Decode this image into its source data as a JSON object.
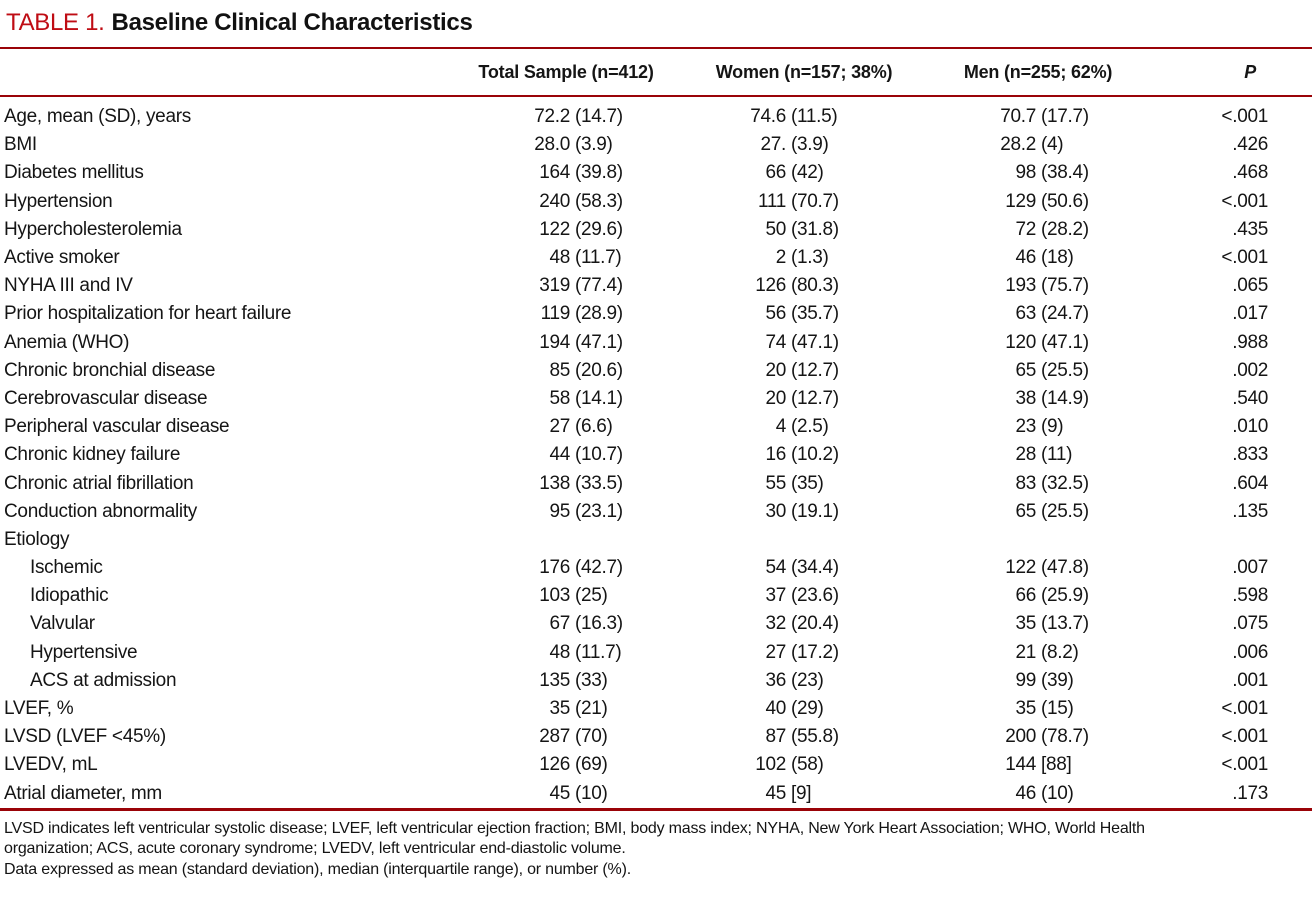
{
  "title": {
    "label": "TABLE 1.",
    "heading": "Baseline Clinical Characteristics"
  },
  "header": {
    "total": "Total Sample (n=412)",
    "women": "Women (n=157; 38%)",
    "men": "Men (n=255; 62%)",
    "p": "P"
  },
  "rows": [
    {
      "label": "Age, mean (SD), years",
      "indent": false,
      "total_v": "72.2",
      "total_s": "(14.7)",
      "women_v": "74.6",
      "women_s": "(11.5)",
      "men_v": "70.7",
      "men_s": "(17.7)",
      "p": "<.001"
    },
    {
      "label": "BMI",
      "indent": false,
      "total_v": "28.0",
      "total_s": "(3.9)",
      "women_v": "27.",
      "women_s": "(3.9)",
      "men_v": "28.2",
      "men_s": "(4)",
      "p": ".426"
    },
    {
      "label": "Diabetes mellitus",
      "indent": false,
      "total_v": "164",
      "total_s": "(39.8)",
      "women_v": "66",
      "women_s": "(42)",
      "men_v": "98",
      "men_s": "(38.4)",
      "p": ".468"
    },
    {
      "label": "Hypertension",
      "indent": false,
      "total_v": "240",
      "total_s": "(58.3)",
      "women_v": "111",
      "women_s": "(70.7)",
      "men_v": "129",
      "men_s": "(50.6)",
      "p": "<.001"
    },
    {
      "label": "Hypercholesterolemia",
      "indent": false,
      "total_v": "122",
      "total_s": "(29.6)",
      "women_v": "50",
      "women_s": "(31.8)",
      "men_v": "72",
      "men_s": "(28.2)",
      "p": ".435"
    },
    {
      "label": "Active smoker",
      "indent": false,
      "total_v": "48",
      "total_s": "(11.7)",
      "women_v": "2",
      "women_s": "(1.3)",
      "men_v": "46",
      "men_s": "(18)",
      "p": "<.001"
    },
    {
      "label": "NYHA III and IV",
      "indent": false,
      "total_v": "319",
      "total_s": "(77.4)",
      "women_v": "126",
      "women_s": "(80.3)",
      "men_v": "193",
      "men_s": "(75.7)",
      "p": ".065"
    },
    {
      "label": "Prior hospitalization for heart failure",
      "indent": false,
      "total_v": "119",
      "total_s": "(28.9)",
      "women_v": "56",
      "women_s": "(35.7)",
      "men_v": "63",
      "men_s": "(24.7)",
      "p": ".017"
    },
    {
      "label": "Anemia (WHO)",
      "indent": false,
      "total_v": "194",
      "total_s": "(47.1)",
      "women_v": "74",
      "women_s": "(47.1)",
      "men_v": "120",
      "men_s": "(47.1)",
      "p": ".988"
    },
    {
      "label": "Chronic bronchial disease",
      "indent": false,
      "total_v": "85",
      "total_s": "(20.6)",
      "women_v": "20",
      "women_s": "(12.7)",
      "men_v": "65",
      "men_s": "(25.5)",
      "p": ".002"
    },
    {
      "label": "Cerebrovascular disease",
      "indent": false,
      "total_v": "58",
      "total_s": "(14.1)",
      "women_v": "20",
      "women_s": "(12.7)",
      "men_v": "38",
      "men_s": "(14.9)",
      "p": ".540"
    },
    {
      "label": "Peripheral vascular disease",
      "indent": false,
      "total_v": "27",
      "total_s": "(6.6)",
      "women_v": "4",
      "women_s": "(2.5)",
      "men_v": "23",
      "men_s": "(9)",
      "p": ".010"
    },
    {
      "label": "Chronic kidney failure",
      "indent": false,
      "total_v": "44",
      "total_s": "(10.7)",
      "women_v": "16",
      "women_s": "(10.2)",
      "men_v": "28",
      "men_s": "(11)",
      "p": ".833"
    },
    {
      "label": "Chronic atrial fibrillation",
      "indent": false,
      "total_v": "138",
      "total_s": "(33.5)",
      "women_v": "55",
      "women_s": "(35)",
      "men_v": "83",
      "men_s": "(32.5)",
      "p": ".604"
    },
    {
      "label": "Conduction abnormality",
      "indent": false,
      "total_v": "95",
      "total_s": "(23.1)",
      "women_v": "30",
      "women_s": "(19.1)",
      "men_v": "65",
      "men_s": "(25.5)",
      "p": ".135"
    },
    {
      "label": "Etiology",
      "indent": false,
      "total_v": "",
      "total_s": "",
      "women_v": "",
      "women_s": "",
      "men_v": "",
      "men_s": "",
      "p": ""
    },
    {
      "label": "Ischemic",
      "indent": true,
      "total_v": "176",
      "total_s": "(42.7)",
      "women_v": "54",
      "women_s": "(34.4)",
      "men_v": "122",
      "men_s": "(47.8)",
      "p": ".007"
    },
    {
      "label": "Idiopathic",
      "indent": true,
      "total_v": "103",
      "total_s": "(25)",
      "women_v": "37",
      "women_s": "(23.6)",
      "men_v": "66",
      "men_s": "(25.9)",
      "p": ".598"
    },
    {
      "label": "Valvular",
      "indent": true,
      "total_v": "67",
      "total_s": "(16.3)",
      "women_v": "32",
      "women_s": "(20.4)",
      "men_v": "35",
      "men_s": "(13.7)",
      "p": ".075"
    },
    {
      "label": "Hypertensive",
      "indent": true,
      "total_v": "48",
      "total_s": "(11.7)",
      "women_v": "27",
      "women_s": "(17.2)",
      "men_v": "21",
      "men_s": "(8.2)",
      "p": ".006"
    },
    {
      "label": "ACS at admission",
      "indent": true,
      "total_v": "135",
      "total_s": "(33)",
      "women_v": "36",
      "women_s": "(23)",
      "men_v": "99",
      "men_s": "(39)",
      "p": ".001"
    },
    {
      "label": "LVEF, %",
      "indent": false,
      "total_v": "35",
      "total_s": "(21)",
      "women_v": "40",
      "women_s": "(29)",
      "men_v": "35",
      "men_s": "(15)",
      "p": "<.001"
    },
    {
      "label": "LVSD (LVEF <45%)",
      "indent": false,
      "total_v": "287",
      "total_s": "(70)",
      "women_v": "87",
      "women_s": "(55.8)",
      "men_v": "200",
      "men_s": "(78.7)",
      "p": "<.001"
    },
    {
      "label": "LVEDV, mL",
      "indent": false,
      "total_v": "126",
      "total_s": "(69)",
      "women_v": "102",
      "women_s": "(58)",
      "men_v": "144",
      "men_s": "[88]",
      "p": "<.001"
    },
    {
      "label": "Atrial diameter, mm",
      "indent": false,
      "total_v": "45",
      "total_s": "(10)",
      "women_v": "45",
      "women_s": "[9]",
      "men_v": "46",
      "men_s": "(10)",
      "p": ".173"
    }
  ],
  "footnotes": [
    "LVSD indicates left ventricular systolic disease; LVEF, left ventricular ejection fraction; BMI, body mass index; NYHA, New York Heart Association; WHO, World Health",
    "organization; ACS, acute coronary syndrome; LVEDV, left ventricular end-diastolic volume.",
    "Data expressed as mean (standard deviation), median (interquartile range), or number (%)."
  ],
  "colors": {
    "title_accent": "#bf0c14",
    "rule": "#9a0308",
    "text": "#151515"
  }
}
